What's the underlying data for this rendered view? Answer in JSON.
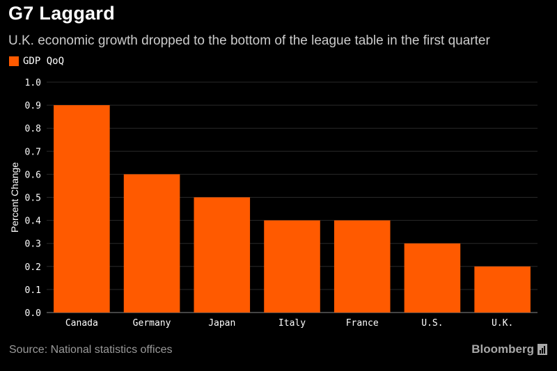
{
  "header": {
    "title": "G7 Laggard",
    "subtitle": "U.K. economic growth dropped to the bottom of the league table in the first quarter"
  },
  "legend": {
    "label": "GDP QoQ"
  },
  "footer": {
    "source": "Source: National statistics offices",
    "brand": "Bloomberg"
  },
  "colors": {
    "bar": "#ff5a00",
    "background": "#000000",
    "grid": "#2a2a2a"
  },
  "chart_data": {
    "type": "bar",
    "categories": [
      "Canada",
      "Germany",
      "Japan",
      "Italy",
      "France",
      "U.S.",
      "U.K."
    ],
    "series": [
      {
        "name": "GDP QoQ",
        "values": [
          0.9,
          0.6,
          0.5,
          0.4,
          0.4,
          0.3,
          0.2
        ]
      }
    ],
    "title": "G7 Laggard",
    "subtitle": "U.K. economic growth dropped to the bottom of the league table in the first quarter",
    "xlabel": "",
    "ylabel": "Percent Change",
    "ylim": [
      0,
      1.0
    ],
    "yticks": [
      "0.0",
      "0.1",
      "0.2",
      "0.3",
      "0.4",
      "0.5",
      "0.6",
      "0.7",
      "0.8",
      "0.9",
      "1.0"
    ],
    "grid": true,
    "legend_position": "top-left"
  }
}
